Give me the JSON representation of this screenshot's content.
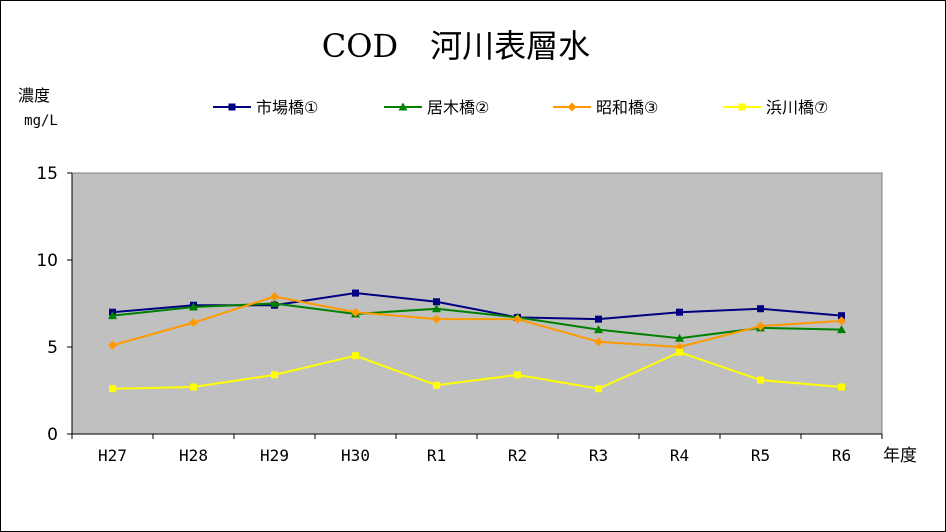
{
  "chart_data": {
    "type": "line",
    "title": "COD　河川表層水",
    "ylabel": "濃度",
    "yunit": "mg/L",
    "xlabel": "年度",
    "categories": [
      "H27",
      "H28",
      "H29",
      "H30",
      "R1",
      "R2",
      "R3",
      "R4",
      "R5",
      "R6"
    ],
    "ylim": [
      0,
      15
    ],
    "yticks": [
      0,
      5,
      10,
      15
    ],
    "grid": false,
    "legend_position": "top",
    "plot_background": "#C0C0C0",
    "series": [
      {
        "name": "市場橋①",
        "color": "#000080",
        "marker": "square",
        "values": [
          7.0,
          7.4,
          7.4,
          8.1,
          7.6,
          6.7,
          6.6,
          7.0,
          7.2,
          6.8
        ]
      },
      {
        "name": "居木橋②",
        "color": "#008000",
        "marker": "triangle",
        "values": [
          6.8,
          7.3,
          7.5,
          6.9,
          7.2,
          6.7,
          6.0,
          5.5,
          6.1,
          6.0
        ]
      },
      {
        "name": "昭和橋③",
        "color": "#FF9900",
        "marker": "diamond",
        "values": [
          5.1,
          6.4,
          7.9,
          7.0,
          6.6,
          6.6,
          5.3,
          5.0,
          6.2,
          6.5
        ]
      },
      {
        "name": "浜川橋⑦",
        "color": "#FFFF00",
        "marker": "square",
        "values": [
          2.6,
          2.7,
          3.4,
          4.5,
          2.8,
          3.4,
          2.6,
          4.7,
          3.1,
          2.7
        ]
      }
    ]
  }
}
